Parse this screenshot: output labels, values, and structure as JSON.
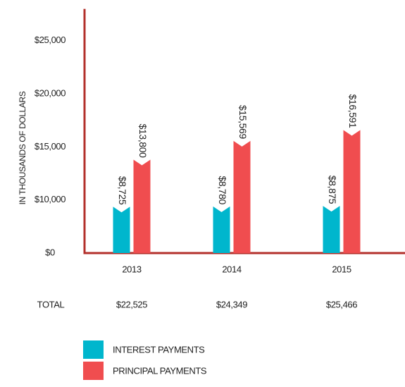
{
  "chart_data": {
    "type": "bar",
    "y_axis_label": "IN THOUSANDS OF DOLLARS",
    "categories": [
      "2013",
      "2014",
      "2015"
    ],
    "series": [
      {
        "name": "INTEREST PAYMENTS",
        "color": "#00b6cd",
        "values": [
          8725,
          8780,
          8875
        ],
        "value_labels": [
          "$8,725",
          "$8,780",
          "$8,875"
        ]
      },
      {
        "name": "PRINCIPAL PAYMENTS",
        "color": "#f04d4f",
        "values": [
          13800,
          15569,
          16591
        ],
        "value_labels": [
          "$13,800",
          "$15,569",
          "$16,591"
        ]
      }
    ],
    "totals": {
      "label": "TOTAL",
      "values": [
        22525,
        24349,
        25466
      ],
      "value_labels": [
        "$22,525",
        "$24,349",
        "$25,466"
      ]
    },
    "ylim": [
      0,
      28000
    ],
    "yticks": [
      {
        "value": 0,
        "label": "$0"
      },
      {
        "value": 10000,
        "label": "$10,000"
      },
      {
        "value": 15000,
        "label": "$15,000"
      },
      {
        "value": 20000,
        "label": "$20,000"
      },
      {
        "value": 25000,
        "label": "$25,000"
      }
    ],
    "axis_color": "#b3302b"
  }
}
